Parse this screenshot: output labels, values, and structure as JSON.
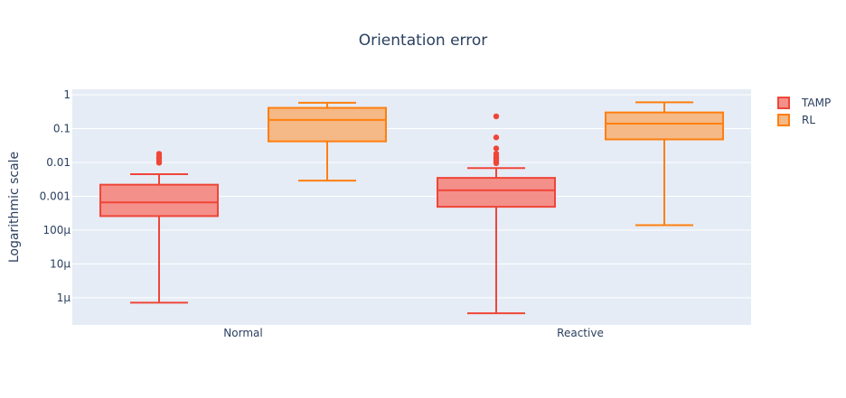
{
  "chart_data": {
    "type": "box",
    "title": "Orientation error",
    "xlabel": "",
    "ylabel": "Logarithmic scale",
    "y_scale": "log",
    "ylim": [
      1.5e-07,
      1.3
    ],
    "y_ticks": [
      {
        "value": 1,
        "label": "1"
      },
      {
        "value": 0.1,
        "label": "0.1"
      },
      {
        "value": 0.01,
        "label": "0.01"
      },
      {
        "value": 0.001,
        "label": "0.001"
      },
      {
        "value": 0.0001,
        "label": "100µ"
      },
      {
        "value": 1e-05,
        "label": "10µ"
      },
      {
        "value": 1e-06,
        "label": "1µ"
      }
    ],
    "categories": [
      "Normal",
      "Reactive"
    ],
    "grid": true,
    "legend_position": "top-right",
    "series": [
      {
        "name": "TAMP",
        "color": "#ef4638",
        "fill": "#f4908a",
        "boxes": [
          {
            "min": 7.2e-07,
            "q1": 0.00026,
            "median": 0.00066,
            "q3": 0.0022,
            "max": 0.0045,
            "outliers": [
              0.0098,
              0.011,
              0.013,
              0.015,
              0.018
            ]
          },
          {
            "min": 3.5e-07,
            "q1": 0.00049,
            "median": 0.0015,
            "q3": 0.0035,
            "max": 0.0068,
            "outliers": [
              0.0095,
              0.011,
              0.013,
              0.015,
              0.018,
              0.026,
              0.055,
              0.23
            ]
          }
        ]
      },
      {
        "name": "RL",
        "color": "#ff7f0e",
        "fill": "#f5b887",
        "boxes": [
          {
            "min": 0.0029,
            "q1": 0.042,
            "median": 0.18,
            "q3": 0.41,
            "max": 0.58,
            "outliers": []
          },
          {
            "min": 0.00014,
            "q1": 0.048,
            "median": 0.14,
            "q3": 0.3,
            "max": 0.6,
            "outliers": []
          }
        ]
      }
    ]
  }
}
